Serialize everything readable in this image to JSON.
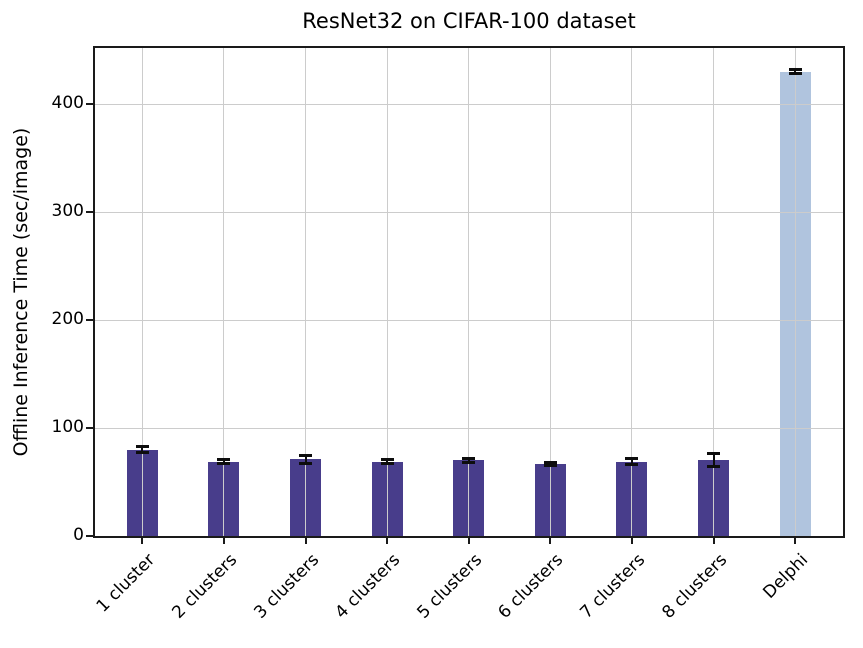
{
  "chart_data": {
    "type": "bar",
    "title": "ResNet32 on CIFAR-100 dataset",
    "xlabel": "",
    "ylabel": "Offline Inference Time (sec/image)",
    "categories": [
      "1 cluster",
      "2 clusters",
      "3 clusters",
      "4 clusters",
      "5 clusters",
      "6 clusters",
      "7 clusters",
      "8 clusters",
      "Delphi"
    ],
    "values": [
      80,
      69,
      71,
      69,
      70,
      67,
      69,
      70,
      430
    ],
    "error_bars": [
      2.5,
      2,
      4,
      1.5,
      1.5,
      1.5,
      2.5,
      6,
      2
    ],
    "bar_colors": [
      "#483d8b",
      "#483d8b",
      "#483d8b",
      "#483d8b",
      "#483d8b",
      "#483d8b",
      "#483d8b",
      "#483d8b",
      "#b0c4de"
    ],
    "yticks": [
      0,
      100,
      200,
      300,
      400
    ],
    "ylim": [
      0,
      452
    ],
    "grid": "horizontal and vertical gridlines drawn above bars",
    "legend": "none",
    "xtick_rotation_deg": 45
  },
  "colors": {
    "cluster_bar": "#483d8b",
    "delphi_bar": "#b0c4de",
    "grid": "#cccccc",
    "axis": "#1a1a1a",
    "error_bar": "#0d0d0d",
    "text": "#000000",
    "background": "#ffffff"
  }
}
